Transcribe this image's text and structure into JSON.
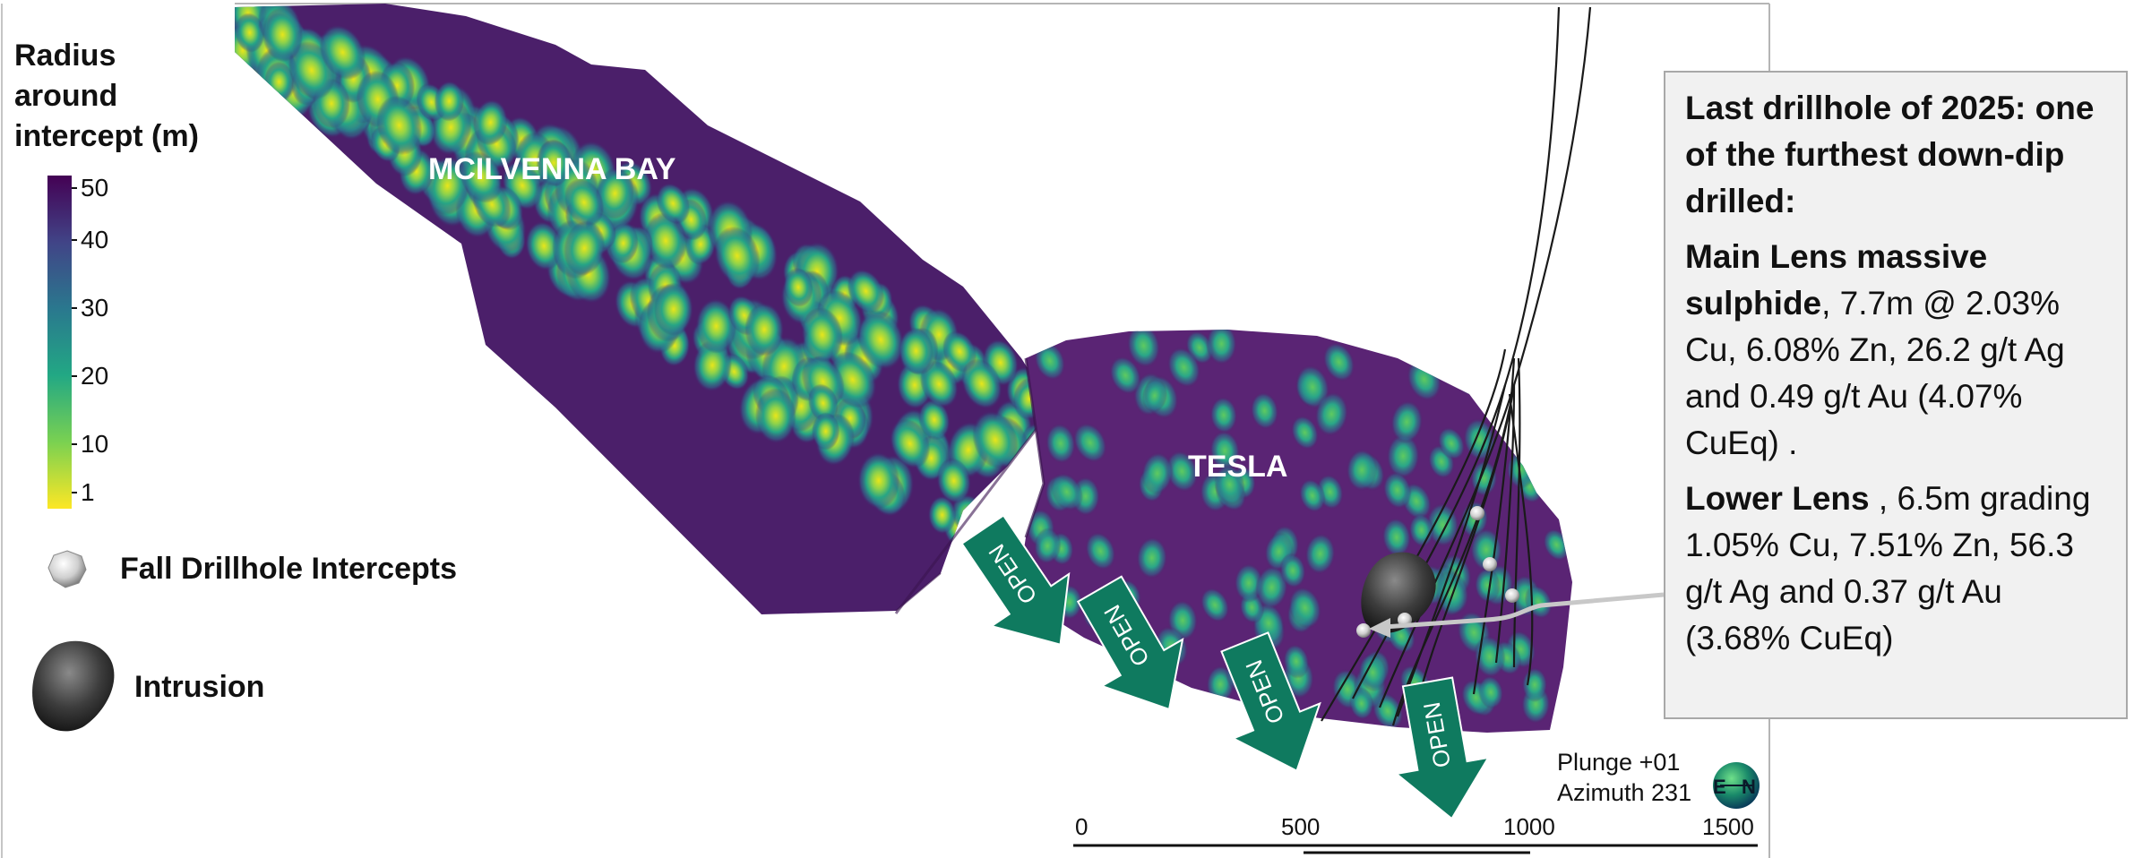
{
  "legend": {
    "title_lines": [
      "Radius",
      "around",
      "intercept (m)"
    ],
    "ticks": [
      "50",
      "40",
      "30",
      "20",
      "10",
      "1"
    ],
    "intercepts_label": "Fall Drillhole Intercepts",
    "intrusion_label": "Intrusion"
  },
  "map": {
    "deposit_1": "MCILVENNA BAY",
    "deposit_2": "TESLA",
    "open_label": "OPEN"
  },
  "callout": {
    "heading": "Last drillhole of 2025: one of the furthest down-dip drilled:",
    "main_bold": "Main Lens massive sulphide",
    "main_text": ", 7.7m @ 2.03% Cu, 6.08% Zn, 26.2 g/t Ag and 0.49 g/t Au (4.07% CuEq) .",
    "lower_bold": "Lower Lens",
    "lower_text": " , 6.5m grading 1.05% Cu, 7.51% Zn, 56.3 g/t Ag and 0.37 g/t Au (3.68% CuEq)"
  },
  "orientation": {
    "plunge": "Plunge +01",
    "azimuth": "Azimuth 231",
    "compass_e": "E",
    "compass_n": "N"
  },
  "scale": {
    "labels": [
      "0",
      "500",
      "1000",
      "1500"
    ]
  },
  "colors": {
    "purple": "#4a1a5e",
    "teal": "#1f8f8a",
    "yellow": "#e6e419",
    "arrow_green": "#0f7a5f"
  }
}
